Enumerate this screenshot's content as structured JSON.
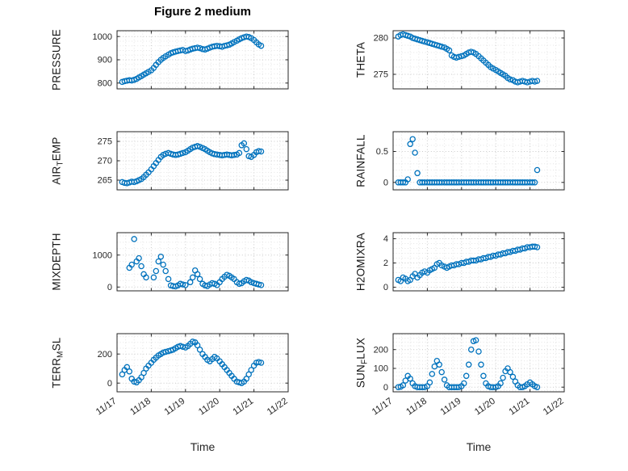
{
  "chart_data": {
    "type": "scatter",
    "title": "Figure 2 medium",
    "xlabel": "Time",
    "marker": "open-circle",
    "marker_color": "#0072BD",
    "grid": "dotted major and minor, on",
    "legend": "none",
    "x_tick_labels": [
      "11/17",
      "11/18",
      "11/19",
      "11/20",
      "11/21",
      "11/22"
    ],
    "x_tick_values": [
      17,
      18,
      19,
      20,
      21,
      22
    ],
    "xlim": [
      17,
      22
    ],
    "x": [
      17.15,
      17.22,
      17.29,
      17.36,
      17.43,
      17.5,
      17.57,
      17.64,
      17.71,
      17.78,
      17.85,
      17.92,
      18,
      18.07,
      18.14,
      18.21,
      18.28,
      18.35,
      18.42,
      18.5,
      18.57,
      18.64,
      18.71,
      18.78,
      18.85,
      18.92,
      19,
      19.07,
      19.14,
      19.21,
      19.28,
      19.35,
      19.42,
      19.5,
      19.57,
      19.64,
      19.71,
      19.78,
      19.85,
      19.92,
      20,
      20.07,
      20.14,
      20.21,
      20.28,
      20.35,
      20.42,
      20.5,
      20.57,
      20.64,
      20.71,
      20.78,
      20.85,
      20.92,
      21,
      21.07,
      21.14,
      21.21
    ],
    "subplots": [
      {
        "name": "PRESSURE",
        "ylabel": {
          "pre": "PRESSURE",
          "sub": "",
          "post": ""
        },
        "yticks": [
          800,
          900,
          1000
        ],
        "ylim": [
          775,
          1025
        ],
        "values": [
          805,
          808,
          810,
          812,
          811,
          814,
          818,
          824,
          830,
          836,
          842,
          848,
          855,
          865,
          878,
          890,
          900,
          908,
          915,
          922,
          928,
          932,
          935,
          938,
          940,
          942,
          938,
          940,
          944,
          948,
          950,
          952,
          950,
          946,
          944,
          948,
          952,
          956,
          958,
          960,
          958,
          956,
          960,
          962,
          965,
          970,
          976,
          982,
          988,
          993,
          997,
          1000,
          998,
          993,
          985,
          975,
          966,
          960
        ]
      },
      {
        "name": "THETA",
        "ylabel": {
          "pre": "THETA",
          "sub": "",
          "post": ""
        },
        "yticks": [
          275,
          280
        ],
        "ylim": [
          273,
          281
        ],
        "values": [
          280.2,
          280.4,
          280.5,
          280.4,
          280.3,
          280.2,
          280.0,
          279.9,
          279.8,
          279.7,
          279.6,
          279.5,
          279.4,
          279.3,
          279.2,
          279.1,
          279.0,
          278.9,
          278.8,
          278.7,
          278.5,
          278.3,
          277.6,
          277.4,
          277.3,
          277.4,
          277.5,
          277.6,
          277.8,
          278.0,
          278.1,
          278.0,
          277.8,
          277.5,
          277.2,
          276.9,
          276.6,
          276.3,
          276.0,
          275.8,
          275.6,
          275.4,
          275.2,
          275.0,
          274.8,
          274.5,
          274.3,
          274.2,
          274.0,
          273.9,
          274.0,
          274.1,
          274.0,
          273.9,
          274.0,
          274.1,
          274.0,
          274.1
        ]
      },
      {
        "name": "AIR_TEMP",
        "ylabel": {
          "pre": "AIR",
          "sub": "T",
          "post": "EMP"
        },
        "yticks": [
          265,
          270,
          275
        ],
        "ylim": [
          262.5,
          277.5
        ],
        "values": [
          264.5,
          264.3,
          264.2,
          264.4,
          264.6,
          264.5,
          264.7,
          265.0,
          265.3,
          265.8,
          266.4,
          267.0,
          267.8,
          268.6,
          269.4,
          270.2,
          271.0,
          271.5,
          271.8,
          272.0,
          271.8,
          271.6,
          271.5,
          271.6,
          271.8,
          272.0,
          272.2,
          272.6,
          273.0,
          273.4,
          273.6,
          273.8,
          273.6,
          273.3,
          273.0,
          272.6,
          272.2,
          271.9,
          271.7,
          271.6,
          271.5,
          271.4,
          271.5,
          271.6,
          271.5,
          271.4,
          271.5,
          271.6,
          272.0,
          274.0,
          274.5,
          273.0,
          271.2,
          271.0,
          271.5,
          272.2,
          272.5,
          272.4
        ]
      },
      {
        "name": "RAINFALL",
        "ylabel": {
          "pre": "RAINFALL",
          "sub": "",
          "post": ""
        },
        "yticks": [
          0,
          0.5
        ],
        "ylim": [
          -0.12,
          0.82
        ],
        "values": [
          0,
          0,
          0,
          0,
          0.05,
          0.62,
          0.7,
          0.48,
          0.15,
          0,
          0,
          0,
          0,
          0,
          0,
          0,
          0,
          0,
          0,
          0,
          0,
          0,
          0,
          0,
          0,
          0,
          0,
          0,
          0,
          0,
          0,
          0,
          0,
          0,
          0,
          0,
          0,
          0,
          0,
          0,
          0,
          0,
          0,
          0,
          0,
          0,
          0,
          0,
          0,
          0,
          0,
          0,
          0,
          0,
          0,
          0,
          0,
          0.2
        ]
      },
      {
        "name": "MIXDEPTH",
        "ylabel": {
          "pre": "MIXDEPTH",
          "sub": "",
          "post": ""
        },
        "yticks": [
          0,
          1000
        ],
        "ylim": [
          -120,
          1700
        ],
        "values": [
          null,
          null,
          null,
          600,
          700,
          1500,
          800,
          900,
          650,
          400,
          300,
          null,
          null,
          300,
          500,
          800,
          950,
          700,
          500,
          250,
          50,
          30,
          20,
          50,
          100,
          80,
          60,
          null,
          150,
          300,
          520,
          400,
          250,
          100,
          50,
          30,
          80,
          120,
          100,
          60,
          150,
          250,
          320,
          380,
          350,
          300,
          250,
          150,
          100,
          120,
          180,
          220,
          200,
          150,
          120,
          100,
          80,
          60
        ]
      },
      {
        "name": "H2OMIXRA",
        "ylabel": {
          "pre": "H2OMIXRA",
          "sub": "",
          "post": ""
        },
        "yticks": [
          0,
          2,
          4
        ],
        "ylim": [
          -0.3,
          4.5
        ],
        "values": [
          0.6,
          0.5,
          0.8,
          0.7,
          0.5,
          0.6,
          0.9,
          1.1,
          0.8,
          1.0,
          1.2,
          1.3,
          1.2,
          1.4,
          1.5,
          1.6,
          1.9,
          2.0,
          1.8,
          1.7,
          1.6,
          1.7,
          1.8,
          1.8,
          1.9,
          1.9,
          2.0,
          2.0,
          2.1,
          2.1,
          2.2,
          2.2,
          2.2,
          2.3,
          2.3,
          2.4,
          2.4,
          2.5,
          2.5,
          2.6,
          2.6,
          2.7,
          2.7,
          2.8,
          2.8,
          2.9,
          2.9,
          3.0,
          3.0,
          3.1,
          3.1,
          3.2,
          3.2,
          3.3,
          3.3,
          3.35,
          3.35,
          3.3
        ]
      },
      {
        "name": "TERR_MSL",
        "ylabel": {
          "pre": "TERR",
          "sub": "M",
          "post": "SL"
        },
        "yticks": [
          0,
          200
        ],
        "ylim": [
          -60,
          340
        ],
        "values": [
          60,
          90,
          110,
          80,
          30,
          10,
          5,
          20,
          40,
          70,
          100,
          120,
          140,
          160,
          175,
          190,
          200,
          210,
          215,
          220,
          225,
          230,
          240,
          250,
          255,
          250,
          245,
          255,
          270,
          285,
          280,
          260,
          230,
          200,
          180,
          160,
          150,
          165,
          180,
          170,
          150,
          130,
          110,
          90,
          70,
          50,
          30,
          10,
          5,
          0,
          10,
          30,
          60,
          90,
          120,
          140,
          145,
          140
        ]
      },
      {
        "name": "SUN_FLUX",
        "ylabel": {
          "pre": "SUN",
          "sub": "F",
          "post": "LUX"
        },
        "yticks": [
          0,
          100,
          200
        ],
        "ylim": [
          -25,
          285
        ],
        "values": [
          0,
          2,
          10,
          35,
          60,
          45,
          20,
          5,
          0,
          0,
          0,
          0,
          5,
          25,
          70,
          110,
          140,
          120,
          80,
          40,
          10,
          0,
          0,
          0,
          0,
          0,
          5,
          20,
          60,
          120,
          200,
          245,
          250,
          190,
          120,
          60,
          20,
          5,
          0,
          0,
          0,
          5,
          20,
          50,
          85,
          100,
          80,
          55,
          30,
          10,
          0,
          0,
          5,
          15,
          25,
          15,
          5,
          0
        ]
      }
    ]
  }
}
